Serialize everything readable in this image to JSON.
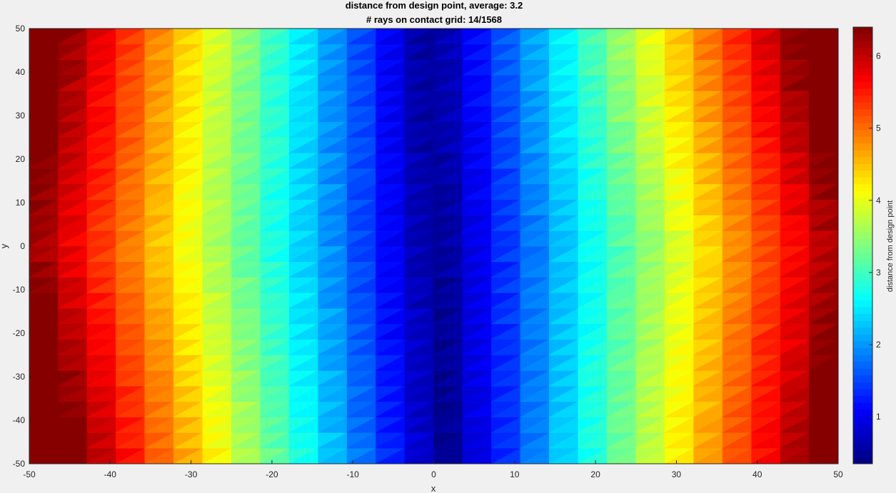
{
  "chart_data": {
    "type": "heatmap",
    "title": [
      "distance from design point, average: 3.2",
      "# rays on contact grid: 14/1568"
    ],
    "xlabel": "x",
    "ylabel": "y",
    "xlim": [
      -50,
      50
    ],
    "ylim": [
      -50,
      50
    ],
    "xticks": [
      -50,
      -40,
      -30,
      -20,
      -10,
      0,
      10,
      20,
      30,
      40,
      50
    ],
    "yticks": [
      -50,
      -40,
      -30,
      -20,
      -10,
      0,
      10,
      20,
      30,
      40,
      50
    ],
    "colormap": "jet",
    "colorbar": {
      "label": "distance from design point",
      "clim": [
        0.35,
        6.4
      ],
      "ticks": [
        1,
        2,
        3,
        4,
        5,
        6
      ]
    },
    "grid": false,
    "surface_model": {
      "description": "Distance ~ 0.22 * sqrt((x - 0.5)^2 + (0.55*y + 0.1*x)^2*0.02 + ...)",
      "mesh": "triangulated 28 x 28 grid"
    }
  }
}
